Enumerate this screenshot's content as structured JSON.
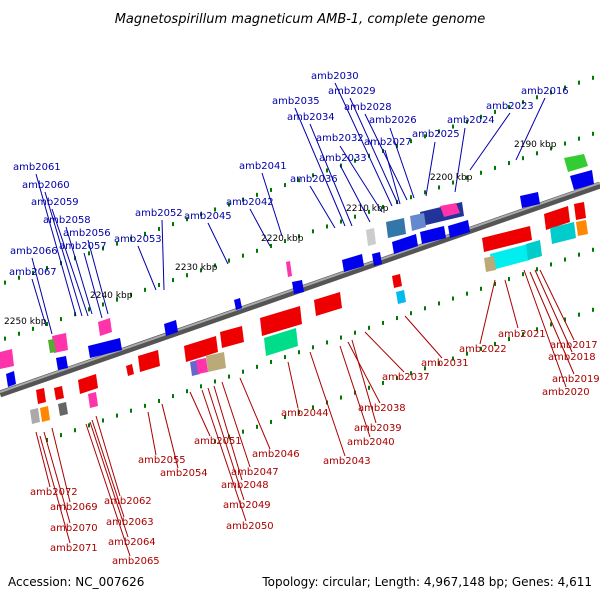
{
  "title": "Magnetospirillum magneticum AMB-1, complete genome",
  "footer": {
    "accession": "Accession: NC_007626",
    "topology": "Topology: circular; Length: 4,967,148 bp; Genes: 4,611"
  },
  "ticks": [
    "2190 kbp",
    "2200 kbp",
    "2210 kbp",
    "2220 kbp",
    "2230 kbp",
    "2240 kbp",
    "2250 kbp"
  ],
  "colors": {
    "backbone": "#808080",
    "forward_label": "#0000aa",
    "reverse_label": "#aa0000",
    "forward_gene": "#0000ee",
    "reverse_gene": "#ee0000",
    "tick": "#007700"
  },
  "forward_genes": [
    "amb2016",
    "amb2023",
    "amb2024",
    "amb2025",
    "amb2026",
    "amb2027",
    "amb2028",
    "amb2029",
    "amb2030",
    "amb2032",
    "amb2033",
    "amb2034",
    "amb2035",
    "amb2036",
    "amb2041",
    "amb2042",
    "amb2045",
    "amb2052",
    "amb2053",
    "amb2056",
    "amb2057",
    "amb2058",
    "amb2059",
    "amb2060",
    "amb2061",
    "amb2066",
    "amb2067"
  ],
  "reverse_genes": [
    "amb2017",
    "amb2018",
    "amb2019",
    "amb2020",
    "amb2021",
    "amb2022",
    "amb2031",
    "amb2037",
    "amb2038",
    "amb2039",
    "amb2040",
    "amb2043",
    "amb2044",
    "amb2046",
    "amb2047",
    "amb2048",
    "amb2049",
    "amb2050",
    "amb2051",
    "amb2054",
    "amb2055",
    "amb2062",
    "amb2063",
    "amb2064",
    "amb2065",
    "amb2069",
    "amb2070",
    "amb2071",
    "amb2072"
  ]
}
